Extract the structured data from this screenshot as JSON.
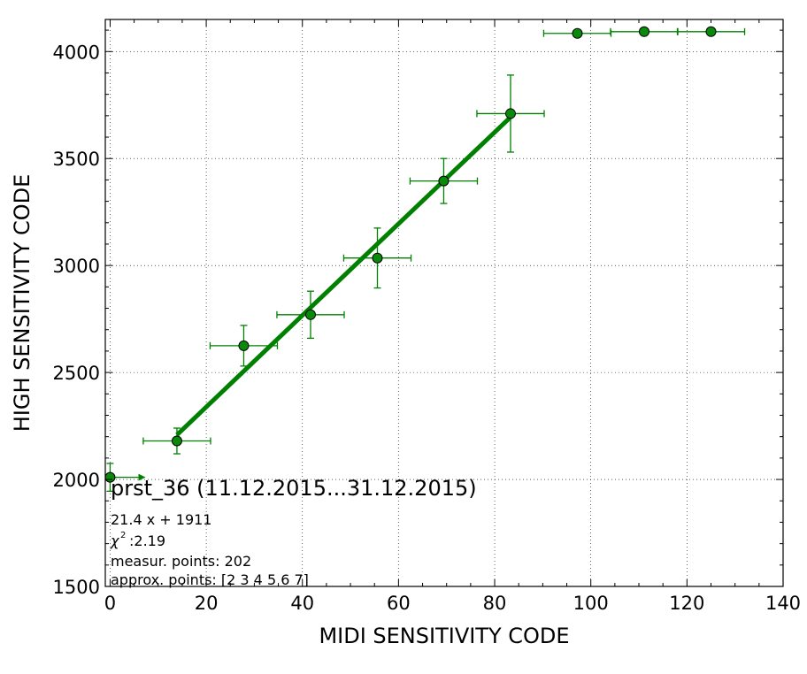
{
  "chart_data": {
    "type": "scatter",
    "xlabel": "MIDI SENSITIVITY CODE",
    "ylabel": "HIGH SENSITIVITY CODE",
    "xlim": [
      -1,
      140
    ],
    "ylim": [
      1500,
      4150
    ],
    "xticks": [
      0,
      20,
      40,
      60,
      80,
      100,
      120,
      140
    ],
    "yticks": [
      1500,
      2000,
      2500,
      3000,
      3500,
      4000
    ],
    "grid": true,
    "colors": {
      "series": "#008000",
      "marker_fill": "#0a8a0a",
      "marker_edge": "#000000"
    },
    "points": [
      {
        "x": 0,
        "y": 2010,
        "xerr": 0,
        "yerr": 65,
        "right_arrow_to": 7
      },
      {
        "x": 13.9,
        "y": 2180,
        "xerr": 7,
        "yerr": 60
      },
      {
        "x": 27.8,
        "y": 2625,
        "xerr": 7,
        "yerr": 95
      },
      {
        "x": 41.7,
        "y": 2770,
        "xerr": 7,
        "yerr": 110
      },
      {
        "x": 55.6,
        "y": 3035,
        "xerr": 7,
        "yerr": 140
      },
      {
        "x": 69.4,
        "y": 3395,
        "xerr": 7,
        "yerr": 105
      },
      {
        "x": 83.3,
        "y": 3710,
        "xerr": 7,
        "yerr": 180
      },
      {
        "x": 97.2,
        "y": 4085,
        "xerr": 7,
        "yerr": 0
      },
      {
        "x": 111.1,
        "y": 4093,
        "xerr": 7,
        "yerr": 0
      },
      {
        "x": 125.0,
        "y": 4093,
        "xerr": 7,
        "yerr": 0
      }
    ],
    "fit": {
      "slope": 21.4,
      "intercept": 1911,
      "x_range": [
        13.9,
        83.3
      ]
    },
    "annotation": {
      "title": "prst_36 (11.12.2015...31.12.2015)",
      "lines": [
        "21.4 x + 1911",
        ":2.19",
        "measur. points: 202",
        "approx. points: [2 3 4 5 6 7]"
      ],
      "chi_symbol": "χ",
      "chi_sup": "2"
    }
  }
}
